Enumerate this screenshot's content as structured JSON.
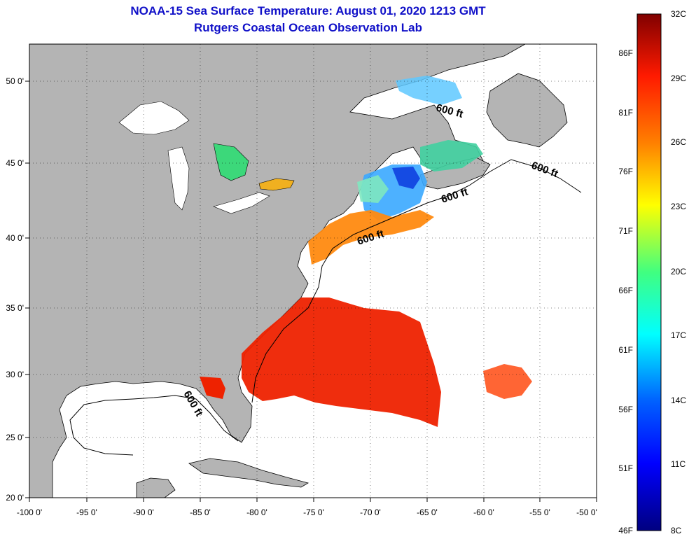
{
  "title_line1": "NOAA-15 Sea Surface Temperature:  August 01, 2020 1213 GMT",
  "title_line2": "Rutgers Coastal Ocean Observation Lab",
  "map": {
    "lon_labels": [
      "-100 0'",
      "-95 0'",
      "-90 0'",
      "-85 0'",
      "-80 0'",
      "-75 0'",
      "-70 0'",
      "-65 0'",
      "-60 0'",
      "-55 0'",
      "-50 0'"
    ],
    "lat_labels": [
      "20 0'",
      "25 0'",
      "30 0'",
      "35 0'",
      "40 0'",
      "45 0'",
      "50 0'"
    ],
    "contour_label": "600 ft"
  },
  "colorbar": {
    "celsius_labels": [
      "32C",
      "29C",
      "26C",
      "23C",
      "20C",
      "17C",
      "14C",
      "11C",
      "8C"
    ],
    "fahrenheit_labels": [
      "86F",
      "81F",
      "76F",
      "71F",
      "66F",
      "61F",
      "56F",
      "51F",
      "46F"
    ],
    "colors": {
      "top": "#800000",
      "red": "#ff1a00",
      "orange": "#ff8000",
      "yellow": "#ffff00",
      "green": "#40ff80",
      "cyan": "#00ffff",
      "blue": "#0060ff",
      "bottom": "#000080"
    }
  },
  "colors": {
    "land": "#b4b4b4",
    "ocean_nodata": "#ffffff",
    "warm_sst": "#ee2200",
    "title": "#1010c8"
  }
}
